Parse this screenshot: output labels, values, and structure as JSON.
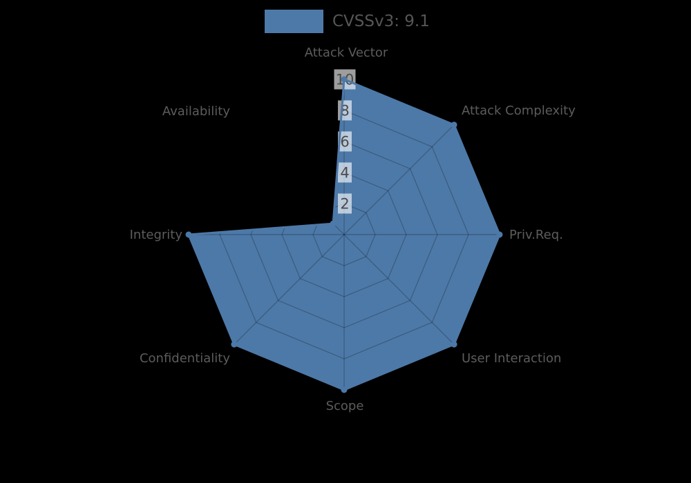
{
  "legend": {
    "label": "CVSSv3: 9.1",
    "swatch_color": "#4d79a8"
  },
  "chart_data": {
    "type": "radar",
    "title": "CVSSv3: 9.1",
    "categories": [
      "Attack Vector",
      "Attack Complexity",
      "Priv.Req.",
      "User Interaction",
      "Scope",
      "Confidentiality",
      "Integrity",
      "Availability"
    ],
    "values": [
      10,
      10,
      10,
      10,
      10,
      10,
      10,
      1
    ],
    "ticks": [
      2,
      4,
      6,
      8,
      10
    ],
    "rmin": 0,
    "rmax": 10,
    "start_axis": "top",
    "direction": "clockwise",
    "grid": true,
    "grid_shape": "polygon",
    "legend_position": "top-center",
    "colors": {
      "series_fill": "#4d79a8",
      "series_line": "#4d79a8",
      "grid_line": "rgba(0,0,0,0.22)",
      "axis_label_text": "#5c5c5c",
      "tick_text": "#4a4a4a",
      "tick_box_bg": "rgba(255,255,255,0.62)",
      "background": "#000000"
    }
  }
}
